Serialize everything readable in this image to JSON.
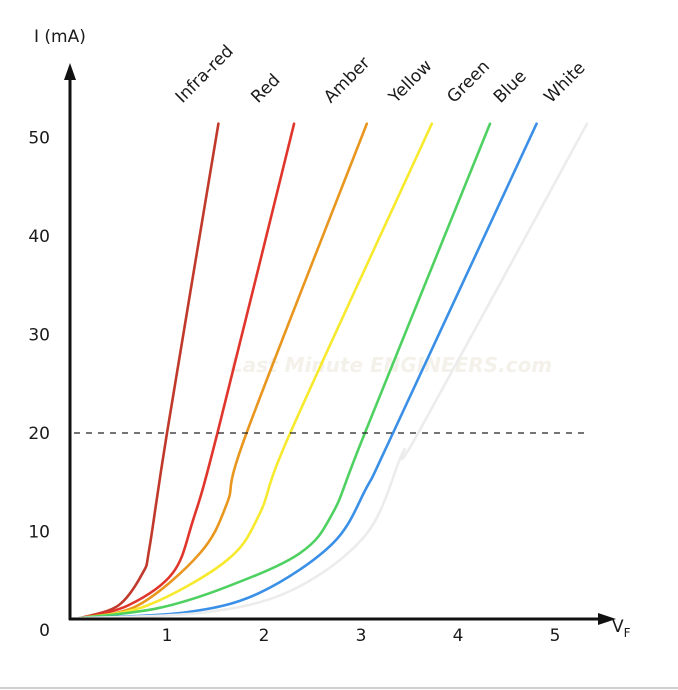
{
  "chart_data": {
    "type": "line",
    "ylabel": "I (mA)",
    "xlabel": "V",
    "xlabel_sub": "F",
    "x_ticks": [
      "1",
      "2",
      "3",
      "4",
      "5"
    ],
    "y_ticks": [
      "0",
      "10",
      "20",
      "30",
      "40",
      "50"
    ],
    "xlim": [
      0,
      5.6
    ],
    "ylim": [
      0,
      55
    ],
    "grid": false,
    "reference_line": {
      "y": 20,
      "style": "dashed"
    },
    "watermark": "Last Minute ENGINEERS.com",
    "series": [
      {
        "name": "Infra-red",
        "color": "#c0392b",
        "x": [
          0.1,
          0.5,
          0.75,
          0.82,
          1.0,
          1.53
        ],
        "y": [
          1.2,
          2.5,
          5.8,
          8.4,
          20,
          51.4
        ]
      },
      {
        "name": "Red",
        "color": "#e0352b",
        "x": [
          0.1,
          0.6,
          1.06,
          1.27,
          1.52,
          2.31
        ],
        "y": [
          1.2,
          2.5,
          5.8,
          11.2,
          20,
          51.4
        ]
      },
      {
        "name": "Amber",
        "color": "#e8961e",
        "x": [
          0.1,
          0.7,
          1.34,
          1.62,
          1.82,
          3.06
        ],
        "y": [
          1.2,
          2.5,
          7.8,
          12.9,
          20,
          51.4
        ]
      },
      {
        "name": "Yellow",
        "color": "#f7ea2e",
        "x": [
          0.1,
          0.8,
          1.62,
          1.96,
          2.27,
          3.73
        ],
        "y": [
          1.2,
          2.5,
          7.1,
          11.9,
          20,
          51.4
        ]
      },
      {
        "name": "Green",
        "color": "#4fd162",
        "x": [
          0.1,
          0.9,
          1.62,
          2.37,
          2.71,
          3.04,
          4.33
        ],
        "y": [
          1.2,
          2.2,
          4.4,
          7.8,
          11.9,
          20,
          51.4
        ]
      },
      {
        "name": "Blue",
        "color": "#3a8fe6",
        "x": [
          0.1,
          1.2,
          1.96,
          2.71,
          3.06,
          3.33,
          4.81
        ],
        "y": [
          1.2,
          1.8,
          3.8,
          8.8,
          14.5,
          20,
          51.4
        ]
      },
      {
        "name": "White",
        "color": "#ececec",
        "x": [
          0.1,
          1.4,
          2.3,
          3.06,
          3.43,
          3.59,
          5.33
        ],
        "y": [
          1.2,
          1.8,
          4.1,
          9.8,
          18,
          20,
          51.4
        ]
      }
    ]
  }
}
